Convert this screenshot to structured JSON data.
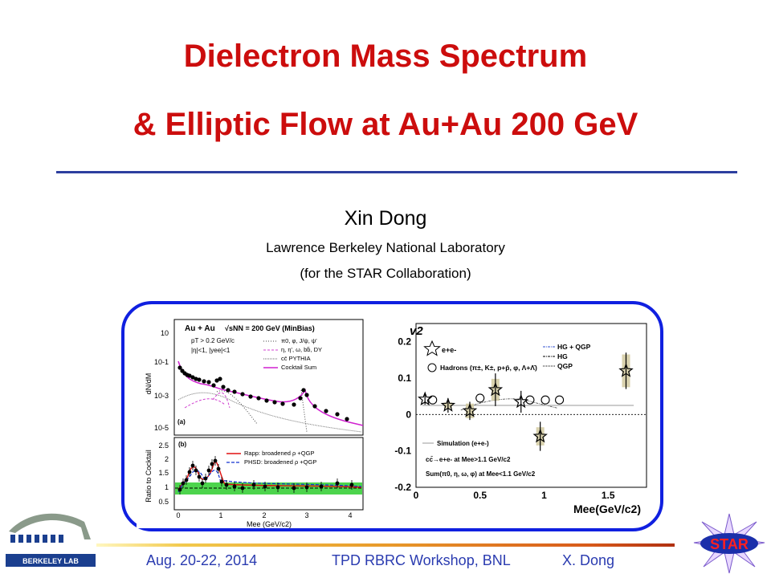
{
  "slide": {
    "title_line1": "Dielectron Mass Spectrum",
    "title_line2": "& Elliptic Flow at Au+Au 200 GeV",
    "author": "Xin Dong",
    "affiliation": "Lawrence Berkeley National Laboratory",
    "collaboration": "(for the STAR Collaboration)",
    "accent_color": "#cc0d0d",
    "rule_color": "#2d3f9f"
  },
  "left_figure": {
    "top_panel": {
      "ylabel": "dN/dM",
      "header": "Au + Au",
      "energy": "√sNN = 200 GeV (MinBias)",
      "cut1": "pT > 0.2 GeV/c",
      "cut2": "|η|<1, |yee|<1",
      "legend": [
        "π0, φ, J/ψ, ψ'",
        "η, η', ω, bb̄, DY",
        "cc̄ PYTHIA",
        "Cocktail Sum"
      ],
      "panel_label": "(a)",
      "yticks": [
        "10",
        "10-1",
        "10-3",
        "10-5"
      ]
    },
    "bottom_panel": {
      "ylabel": "Ratio to Cocktail",
      "xlabel": "Mee (GeV/c2)",
      "panel_label": "(b)",
      "legend": [
        "Rapp: broadened ρ +QGP",
        "PHSD: broadened ρ +QGP"
      ],
      "yticks": [
        "2.5",
        "2",
        "1.5",
        "1",
        "0.5"
      ],
      "xticks": [
        "0",
        "1",
        "2",
        "3",
        "4"
      ]
    }
  },
  "right_figure": {
    "ylabel": "v2",
    "xlabel": "Mee(GeV/c2)",
    "yticks": [
      "0.2",
      "0.1",
      "0",
      "-0.1",
      "-0.2"
    ],
    "xticks": [
      "0",
      "0.5",
      "1",
      "1.5"
    ],
    "legend_top": [
      "HG + QGP",
      "HG",
      "QGP"
    ],
    "legend_ee": "e+e-",
    "legend_hadrons": "Hadrons (π±, K±, p+p̄, φ, Λ+Λ̄)",
    "legend_bottom": [
      "Simulation (e+e-)",
      "cc̄→e+e- at Mee>1.1 GeV/c2",
      "Sum(π0, η, ω, φ) at Mee<1.1 GeV/c2"
    ]
  },
  "chart_data": {
    "type": "scatter",
    "title": "",
    "xlabel": "Mee(GeV/c2)",
    "ylabel": "v2",
    "xlim": [
      0,
      1.8
    ],
    "ylim": [
      -0.2,
      0.25
    ],
    "series": [
      {
        "name": "e+e-",
        "x": [
          0.07,
          0.25,
          0.42,
          0.62,
          0.82,
          0.97,
          1.64
        ],
        "y": [
          0.042,
          0.025,
          0.01,
          0.068,
          0.035,
          -0.06,
          0.12
        ]
      },
      {
        "name": "Hadrons",
        "x": [
          0.13,
          0.5,
          0.89,
          1.01,
          1.12
        ],
        "y": [
          0.04,
          0.045,
          0.04,
          0.04,
          0.04
        ]
      }
    ]
  },
  "footer": {
    "date": "Aug. 20-22, 2014",
    "event": "TPD RBRC Workshop, BNL",
    "speaker": "X. Dong",
    "lab_name": "BERKELEY LAB",
    "star_logo": "STAR"
  }
}
